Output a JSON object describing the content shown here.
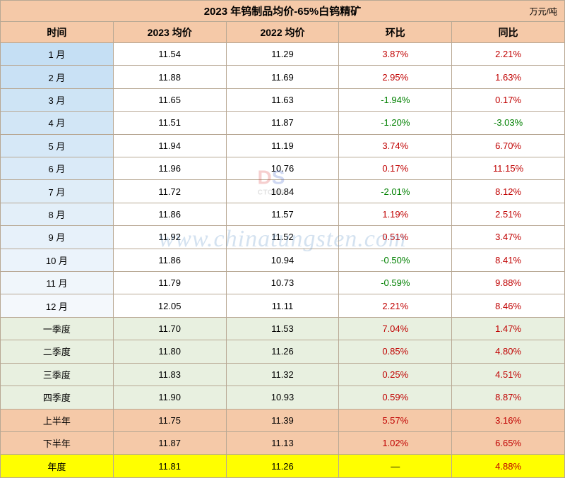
{
  "title": "2023 年钨制品均价-65%白钨精矿",
  "unit": "万元/吨",
  "headers": {
    "time": "时间",
    "price2023": "2023 均价",
    "price2022": "2022 均价",
    "mom": "环比",
    "yoy": "同比"
  },
  "month_gradient": {
    "start": "#c5dff4",
    "end": "#f4f8fc"
  },
  "months": [
    {
      "label": "1 月",
      "p2023": "11.54",
      "p2022": "11.29",
      "mom": "3.87%",
      "mom_sign": "pos",
      "yoy": "2.21%",
      "yoy_sign": "pos"
    },
    {
      "label": "2 月",
      "p2023": "11.88",
      "p2022": "11.69",
      "mom": "2.95%",
      "mom_sign": "pos",
      "yoy": "1.63%",
      "yoy_sign": "pos"
    },
    {
      "label": "3 月",
      "p2023": "11.65",
      "p2022": "11.63",
      "mom": "-1.94%",
      "mom_sign": "neg",
      "yoy": "0.17%",
      "yoy_sign": "pos"
    },
    {
      "label": "4 月",
      "p2023": "11.51",
      "p2022": "11.87",
      "mom": "-1.20%",
      "mom_sign": "neg",
      "yoy": "-3.03%",
      "yoy_sign": "neg"
    },
    {
      "label": "5 月",
      "p2023": "11.94",
      "p2022": "11.19",
      "mom": "3.74%",
      "mom_sign": "pos",
      "yoy": "6.70%",
      "yoy_sign": "pos"
    },
    {
      "label": "6 月",
      "p2023": "11.96",
      "p2022": "10.76",
      "mom": "0.17%",
      "mom_sign": "pos",
      "yoy": "11.15%",
      "yoy_sign": "pos"
    },
    {
      "label": "7 月",
      "p2023": "11.72",
      "p2022": "10.84",
      "mom": "-2.01%",
      "mom_sign": "neg",
      "yoy": "8.12%",
      "yoy_sign": "pos"
    },
    {
      "label": "8 月",
      "p2023": "11.86",
      "p2022": "11.57",
      "mom": "1.19%",
      "mom_sign": "pos",
      "yoy": "2.51%",
      "yoy_sign": "pos"
    },
    {
      "label": "9 月",
      "p2023": "11.92",
      "p2022": "11.52",
      "mom": "0.51%",
      "mom_sign": "pos",
      "yoy": "3.47%",
      "yoy_sign": "pos"
    },
    {
      "label": "10 月",
      "p2023": "11.86",
      "p2022": "10.94",
      "mom": "-0.50%",
      "mom_sign": "neg",
      "yoy": "8.41%",
      "yoy_sign": "pos"
    },
    {
      "label": "11 月",
      "p2023": "11.79",
      "p2022": "10.73",
      "mom": "-0.59%",
      "mom_sign": "neg",
      "yoy": "9.88%",
      "yoy_sign": "pos"
    },
    {
      "label": "12 月",
      "p2023": "12.05",
      "p2022": "11.11",
      "mom": "2.21%",
      "mom_sign": "pos",
      "yoy": "8.46%",
      "yoy_sign": "pos"
    }
  ],
  "quarters": [
    {
      "label": "一季度",
      "p2023": "11.70",
      "p2022": "11.53",
      "mom": "7.04%",
      "mom_sign": "pos",
      "yoy": "1.47%",
      "yoy_sign": "pos"
    },
    {
      "label": "二季度",
      "p2023": "11.80",
      "p2022": "11.26",
      "mom": "0.85%",
      "mom_sign": "pos",
      "yoy": "4.80%",
      "yoy_sign": "pos"
    },
    {
      "label": "三季度",
      "p2023": "11.83",
      "p2022": "11.32",
      "mom": "0.25%",
      "mom_sign": "pos",
      "yoy": "4.51%",
      "yoy_sign": "pos"
    },
    {
      "label": "四季度",
      "p2023": "11.90",
      "p2022": "10.93",
      "mom": "0.59%",
      "mom_sign": "pos",
      "yoy": "8.87%",
      "yoy_sign": "pos"
    }
  ],
  "halves": [
    {
      "label": "上半年",
      "p2023": "11.75",
      "p2022": "11.39",
      "mom": "5.57%",
      "mom_sign": "pos",
      "yoy": "3.16%",
      "yoy_sign": "pos"
    },
    {
      "label": "下半年",
      "p2023": "11.87",
      "p2022": "11.13",
      "mom": "1.02%",
      "mom_sign": "pos",
      "yoy": "6.65%",
      "yoy_sign": "pos"
    }
  ],
  "year": {
    "label": "年度",
    "p2023": "11.81",
    "p2022": "11.26",
    "mom": "—",
    "mom_sign": "neutral",
    "yoy": "4.88%",
    "yoy_sign": "pos"
  },
  "watermark": {
    "url": "www.chinatungsten.com",
    "logo_text": "CTOMS"
  }
}
